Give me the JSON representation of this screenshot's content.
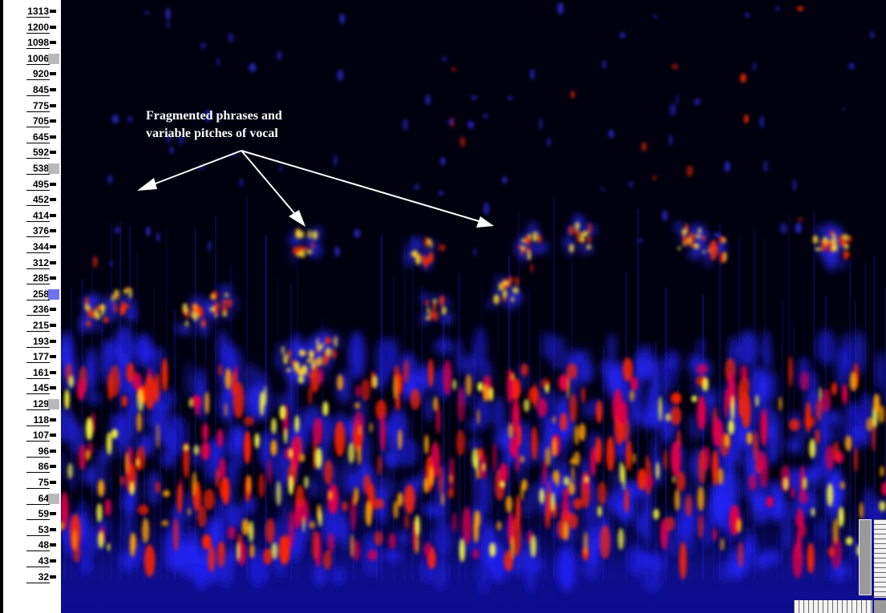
{
  "frequency_axis": {
    "labels": [
      "1313",
      "1200",
      "1098",
      "1006",
      "920",
      "845",
      "775",
      "705",
      "645",
      "592",
      "538",
      "495",
      "452",
      "414",
      "376",
      "344",
      "312",
      "285",
      "258",
      "236",
      "215",
      "193",
      "177",
      "161",
      "145",
      "129",
      "118",
      "107",
      "96",
      "86",
      "75",
      "64",
      "59",
      "53",
      "48",
      "43",
      "32"
    ],
    "highlighted": {
      "1006": "grey",
      "538": "grey",
      "258": "blue",
      "129": "grey",
      "64": "grey"
    }
  },
  "annotation": {
    "line1": "Fragmented phrases and",
    "line2": "variable pitches of vocal",
    "arrow_color": "#ffffff"
  },
  "colors": {
    "background": "#00000f",
    "low": "#1a1aff",
    "mid": "#ff2b00",
    "high": "#ffff40"
  },
  "icons": [
    "vertical-scrollbar",
    "vertical-zoom-ruler",
    "horizontal-zoom-ruler"
  ]
}
